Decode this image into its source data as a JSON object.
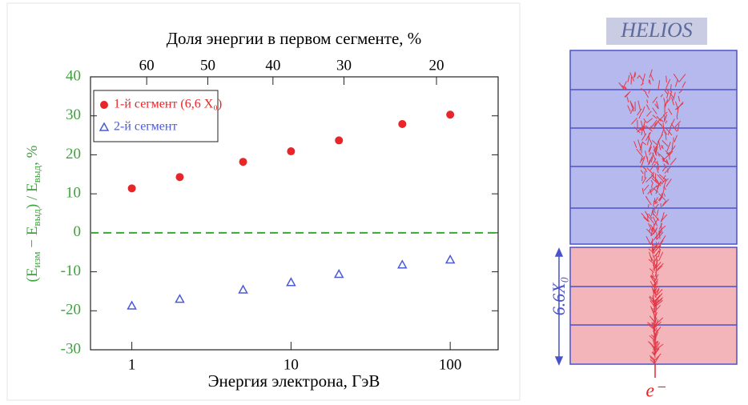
{
  "chart_data": {
    "type": "scatter",
    "x_label": "Энергия электрона, ГэВ",
    "x2_label": "Доля энергии в первом сегменте, %",
    "y_label_parts": [
      "(E",
      "изм",
      "  − E",
      "выд",
      ") / E",
      "выд",
      ", %"
    ],
    "x": [
      1,
      2,
      5,
      10,
      20,
      50,
      100
    ],
    "series": [
      {
        "name": "1-й сегмент (6,6 X₀)",
        "color": "#e8262a",
        "marker": "circle",
        "values": [
          11.4,
          14.3,
          18.2,
          20.9,
          23.7,
          27.9,
          30.3
        ]
      },
      {
        "name": "2-й сегмент",
        "color": "#4b5bd6",
        "marker": "triangle",
        "values": [
          -18.7,
          -17.0,
          -14.6,
          -12.7,
          -10.6,
          -8.2,
          -6.9
        ]
      }
    ],
    "xscale": "log",
    "xlim": [
      0.55,
      200
    ],
    "xticks": [
      1,
      10,
      100
    ],
    "ylim": [
      -30,
      40
    ],
    "yticks": [
      -30,
      -20,
      -10,
      0,
      10,
      20,
      30,
      40
    ],
    "x2ticks": [
      60,
      50,
      40,
      30,
      20
    ],
    "x2tick_x": [
      1.24,
      3.0,
      7.7,
      21.5,
      82
    ],
    "hline": 0,
    "hline_color": "#3aa53a",
    "y_axis_color": "#3aa53a"
  },
  "diagram": {
    "title": "HELIOS",
    "depth_label": "6.6X₀",
    "particle": "e⁻"
  }
}
